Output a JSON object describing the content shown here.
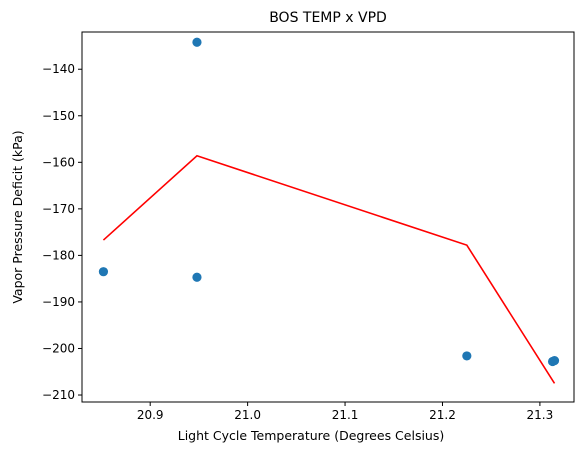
{
  "chart_data": {
    "type": "scatter",
    "title": "BOS TEMP x VPD",
    "xlabel": "Light Cycle Temperature (Degrees Celsius)",
    "ylabel": "Vapor Pressure Deficit (kPa)",
    "xlim": [
      20.83,
      21.335
    ],
    "ylim": [
      -211.5,
      -132.0
    ],
    "x_ticks": [
      20.9,
      21.0,
      21.1,
      21.2,
      21.3
    ],
    "x_tick_labels": [
      "20.9",
      "21.0",
      "21.1",
      "21.2",
      "21.3"
    ],
    "y_ticks": [
      -210,
      -200,
      -190,
      -180,
      -170,
      -160,
      -150,
      -140
    ],
    "y_tick_labels": [
      "−210",
      "−200",
      "−190",
      "−180",
      "−170",
      "−160",
      "−150",
      "−140"
    ],
    "grid": false,
    "scatter": {
      "color": "#1f77b4",
      "points": [
        {
          "x": 20.852,
          "y": -183.5
        },
        {
          "x": 20.948,
          "y": -134.2
        },
        {
          "x": 20.948,
          "y": -184.7
        },
        {
          "x": 21.225,
          "y": -201.6
        },
        {
          "x": 21.313,
          "y": -202.8
        },
        {
          "x": 21.315,
          "y": -202.6
        }
      ]
    },
    "line": {
      "color": "#ff0000",
      "points": [
        {
          "x": 20.852,
          "y": -176.7
        },
        {
          "x": 20.948,
          "y": -158.6
        },
        {
          "x": 21.225,
          "y": -177.8
        },
        {
          "x": 21.315,
          "y": -207.5
        }
      ]
    }
  }
}
